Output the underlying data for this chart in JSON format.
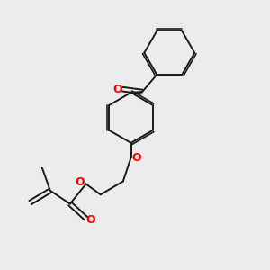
{
  "bg_color": "#ececec",
  "bond_color": "#1a1a1a",
  "o_color": "#ff0000",
  "lw": 1.4,
  "fig_size": [
    3.0,
    3.0
  ],
  "dpi": 100,
  "xlim": [
    0,
    10
  ],
  "ylim": [
    0,
    10
  ]
}
